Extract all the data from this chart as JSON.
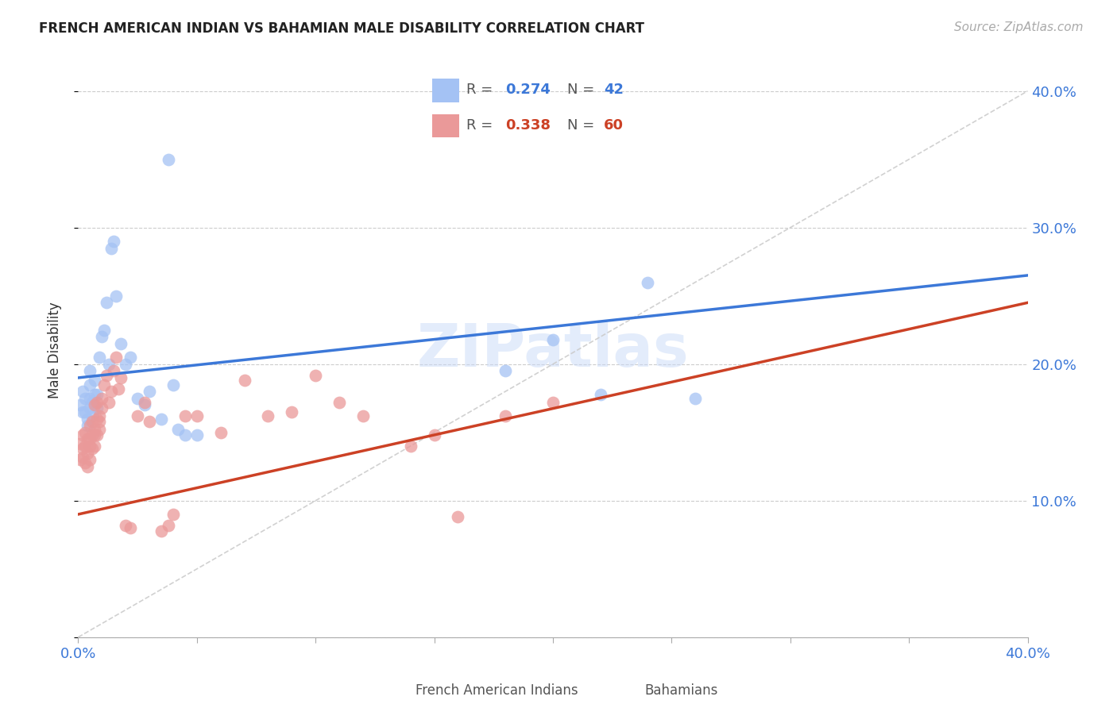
{
  "title": "FRENCH AMERICAN INDIAN VS BAHAMIAN MALE DISABILITY CORRELATION CHART",
  "source": "Source: ZipAtlas.com",
  "ylabel": "Male Disability",
  "xlim": [
    0.0,
    0.4
  ],
  "ylim": [
    0.0,
    0.42
  ],
  "ytick_vals": [
    0.0,
    0.1,
    0.2,
    0.3,
    0.4
  ],
  "ytick_labels": [
    "",
    "10.0%",
    "20.0%",
    "30.0%",
    "40.0%"
  ],
  "xtick_vals": [
    0.0,
    0.05,
    0.1,
    0.15,
    0.2,
    0.25,
    0.3,
    0.35,
    0.4
  ],
  "xtick_labels": [
    "0.0%",
    "",
    "",
    "",
    "",
    "",
    "",
    "",
    "40.0%"
  ],
  "legend_r1": "0.274",
  "legend_n1": "42",
  "legend_r2": "0.338",
  "legend_n2": "60",
  "blue_color": "#a4c2f4",
  "pink_color": "#ea9999",
  "blue_line_color": "#3c78d8",
  "pink_line_color": "#cc4125",
  "diagonal_color": "#cccccc",
  "watermark": "ZIPatlas",
  "fai_x": [
    0.001,
    0.002,
    0.002,
    0.003,
    0.003,
    0.004,
    0.004,
    0.005,
    0.005,
    0.005,
    0.005,
    0.006,
    0.006,
    0.007,
    0.007,
    0.008,
    0.008,
    0.009,
    0.01,
    0.011,
    0.012,
    0.013,
    0.014,
    0.015,
    0.016,
    0.018,
    0.02,
    0.022,
    0.025,
    0.028,
    0.03,
    0.035,
    0.038,
    0.04,
    0.042,
    0.045,
    0.05,
    0.18,
    0.2,
    0.22,
    0.24,
    0.26
  ],
  "fai_y": [
    0.17,
    0.165,
    0.18,
    0.175,
    0.165,
    0.155,
    0.16,
    0.185,
    0.175,
    0.168,
    0.195,
    0.162,
    0.172,
    0.188,
    0.178,
    0.168,
    0.178,
    0.205,
    0.22,
    0.225,
    0.245,
    0.2,
    0.285,
    0.29,
    0.25,
    0.215,
    0.2,
    0.205,
    0.175,
    0.17,
    0.18,
    0.16,
    0.35,
    0.185,
    0.152,
    0.148,
    0.148,
    0.195,
    0.218,
    0.178,
    0.26,
    0.175
  ],
  "bah_x": [
    0.001,
    0.001,
    0.002,
    0.002,
    0.002,
    0.003,
    0.003,
    0.003,
    0.004,
    0.004,
    0.004,
    0.005,
    0.005,
    0.005,
    0.005,
    0.006,
    0.006,
    0.006,
    0.007,
    0.007,
    0.007,
    0.007,
    0.008,
    0.008,
    0.008,
    0.009,
    0.009,
    0.009,
    0.01,
    0.01,
    0.011,
    0.012,
    0.013,
    0.014,
    0.015,
    0.016,
    0.017,
    0.018,
    0.02,
    0.022,
    0.025,
    0.028,
    0.03,
    0.035,
    0.038,
    0.04,
    0.045,
    0.05,
    0.06,
    0.07,
    0.08,
    0.09,
    0.1,
    0.11,
    0.12,
    0.14,
    0.15,
    0.16,
    0.18,
    0.2
  ],
  "bah_y": [
    0.13,
    0.142,
    0.148,
    0.132,
    0.138,
    0.15,
    0.14,
    0.128,
    0.145,
    0.135,
    0.125,
    0.155,
    0.14,
    0.13,
    0.145,
    0.158,
    0.138,
    0.148,
    0.17,
    0.148,
    0.14,
    0.152,
    0.172,
    0.148,
    0.16,
    0.162,
    0.152,
    0.158,
    0.175,
    0.168,
    0.185,
    0.192,
    0.172,
    0.18,
    0.195,
    0.205,
    0.182,
    0.19,
    0.082,
    0.08,
    0.162,
    0.172,
    0.158,
    0.078,
    0.082,
    0.09,
    0.162,
    0.162,
    0.15,
    0.188,
    0.162,
    0.165,
    0.192,
    0.172,
    0.162,
    0.14,
    0.148,
    0.088,
    0.162,
    0.172
  ]
}
